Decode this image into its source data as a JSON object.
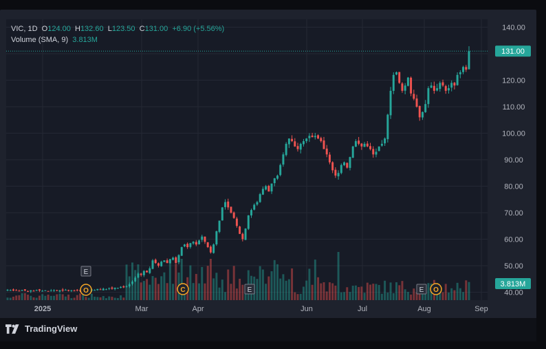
{
  "legend": {
    "symbol": "VIC, 1D",
    "open_label": "O",
    "open": "124.00",
    "high_label": "H",
    "high": "132.60",
    "low_label": "L",
    "low": "123.50",
    "close_label": "C",
    "close": "131.00",
    "change": "+6.90 (+5.56%)",
    "volume_label": "Volume (SMA, 9)",
    "volume": "3.813M"
  },
  "branding": {
    "name": "TradingView"
  },
  "colors": {
    "up": "#26a69a",
    "down": "#ef5350",
    "background": "#171b26",
    "grid": "#242834",
    "text": "#b2b5be"
  },
  "chart_data": {
    "type": "candlestick",
    "symbol": "VIC",
    "interval": "1D",
    "y_axis": {
      "ticks": [
        "40.00",
        "50.00",
        "60.00",
        "70.00",
        "80.00",
        "90.00",
        "100.00",
        "110.00",
        "120.00",
        "130.00",
        "140.00"
      ],
      "range": [
        37,
        143
      ]
    },
    "x_axis": {
      "ticks": [
        "2025",
        "Mar",
        "Apr",
        "Jun",
        "Jul",
        "Aug",
        "Sep"
      ]
    },
    "last_price": "131.00",
    "last_volume": "3.813M",
    "event_markers": [
      {
        "label": "E",
        "at": "Feb"
      },
      {
        "label": "O",
        "at": "Feb"
      },
      {
        "label": "C",
        "at": "Mar"
      },
      {
        "label": "E",
        "at": "Apr"
      },
      {
        "label": "E",
        "at": "Aug"
      },
      {
        "label": "O",
        "at": "Aug"
      }
    ],
    "closes": [
      40.9,
      40.8,
      40.6,
      40.7,
      40.5,
      40.8,
      40.6,
      40.4,
      40.7,
      40.5,
      40.8,
      40.6,
      40.5,
      40.7,
      40.4,
      40.6,
      40.8,
      40.5,
      40.7,
      40.6,
      40.9,
      40.5,
      40.7,
      40.6,
      40.8,
      40.5,
      40.7,
      40.6,
      40.9,
      41,
      40.8,
      41.2,
      41,
      41.3,
      41.1,
      41.5,
      41.3,
      41.7,
      41.6,
      42,
      41.8,
      42.2,
      43,
      44,
      45.5,
      47,
      46.5,
      48,
      47.5,
      49,
      52,
      51,
      50,
      51.5,
      52,
      51,
      52.5,
      53,
      51,
      54,
      57,
      58,
      57,
      58.5,
      59,
      58,
      59.5,
      61,
      59,
      57,
      55,
      58,
      63,
      67,
      72,
      74,
      72,
      70,
      68,
      65,
      62,
      60,
      64,
      69,
      71,
      73,
      74,
      77,
      79,
      80,
      78,
      81,
      83,
      84,
      88,
      92,
      96,
      98,
      97,
      95,
      94,
      96,
      97,
      98,
      99,
      98.5,
      99,
      98,
      97,
      94,
      92,
      89,
      86,
      84,
      85,
      88,
      89,
      87,
      91,
      95,
      97,
      96,
      95,
      96,
      95,
      94,
      92,
      93,
      95,
      96,
      98,
      107,
      116,
      122,
      123,
      119,
      116,
      118,
      121,
      115,
      113,
      110,
      106,
      108,
      111,
      117,
      118,
      116,
      117,
      119,
      118,
      116,
      117,
      119,
      118,
      122,
      123,
      125,
      124,
      131
    ]
  }
}
